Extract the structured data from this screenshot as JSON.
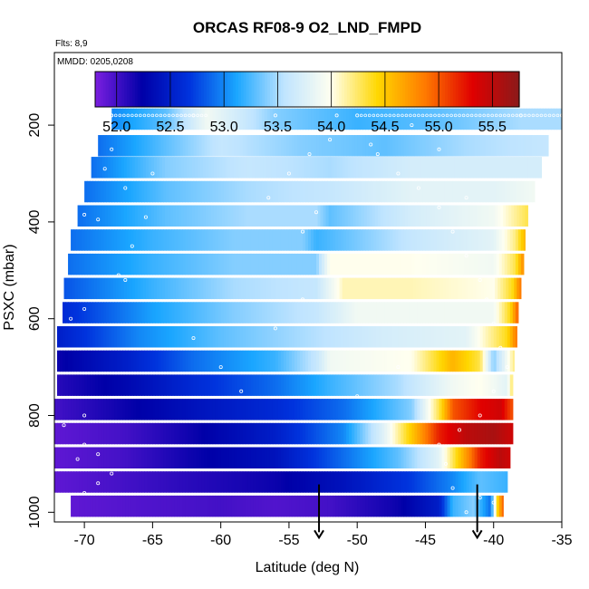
{
  "chart_data": {
    "type": "heatmap",
    "title": "ORCAS RF08-9 O2_LND_FMPD",
    "subtitle": "Flts: 8,9",
    "annotation": "MMDD: 0205,0208",
    "xlabel": "Latitude (deg N)",
    "ylabel": "PSXC (mbar)",
    "xlim": [
      -72.2,
      -35
    ],
    "ylim": [
      1020,
      50
    ],
    "y_reversed": true,
    "x_ticks": [
      -70,
      -65,
      -60,
      -55,
      -50,
      -45,
      -40,
      -35
    ],
    "x_tick_labels": [
      "-70",
      "-65",
      "-60",
      "-55",
      "-50",
      "-45",
      "-40",
      "-35"
    ],
    "y_ticks": [
      200,
      400,
      600,
      800,
      1000
    ],
    "y_tick_labels": [
      "200",
      "400",
      "600",
      "800",
      "1000"
    ],
    "colorbar": {
      "min": 51.8,
      "max": 55.75,
      "ticks": [
        52.0,
        52.5,
        53.0,
        53.5,
        54.0,
        54.5,
        55.0,
        55.5
      ],
      "tick_labels": [
        "52.0",
        "52.5",
        "53.0",
        "53.5",
        "54.0",
        "54.5",
        "55.0",
        "55.5"
      ],
      "colors": [
        "#7b1fe0",
        "#0000a8",
        "#0033dd",
        "#1aa6ff",
        "#bfe4ff",
        "#fffff0",
        "#ffd700",
        "#ff7a00",
        "#e00000",
        "#8b1a1a"
      ]
    },
    "layers": [
      {
        "p_center": 187.5,
        "lat_start": -68.0,
        "lat_end": -35.0,
        "profile": [
          [
            -68.0,
            53.0
          ],
          [
            -64.0,
            53.3
          ],
          [
            -61.0,
            53.9
          ],
          [
            -56.0,
            53.4
          ],
          [
            -50.0,
            53.2
          ],
          [
            -44.0,
            53.3
          ],
          [
            -38.0,
            53.5
          ],
          [
            -35.0,
            53.5
          ]
        ]
      },
      {
        "p_center": 242.5,
        "lat_start": -69.0,
        "lat_end": -36.0,
        "profile": [
          [
            -69.0,
            52.9
          ],
          [
            -64.0,
            53.3
          ],
          [
            -60.0,
            53.6
          ],
          [
            -54.0,
            53.4
          ],
          [
            -48.0,
            53.3
          ],
          [
            -42.0,
            53.5
          ],
          [
            -36.0,
            53.6
          ]
        ]
      },
      {
        "p_center": 287.5,
        "lat_start": -69.5,
        "lat_end": -36.5,
        "profile": [
          [
            -69.5,
            52.9
          ],
          [
            -64.0,
            53.4
          ],
          [
            -58.0,
            53.6
          ],
          [
            -52.0,
            53.5
          ],
          [
            -46.0,
            53.7
          ],
          [
            -40.0,
            53.7
          ],
          [
            -36.5,
            53.7
          ]
        ]
      },
      {
        "p_center": 337.5,
        "lat_start": -70.0,
        "lat_end": -37.0,
        "profile": [
          [
            -70.0,
            52.9
          ],
          [
            -64.0,
            53.3
          ],
          [
            -58.0,
            53.5
          ],
          [
            -52.0,
            53.6
          ],
          [
            -46.0,
            53.8
          ],
          [
            -40.0,
            53.8
          ],
          [
            -37.0,
            53.9
          ]
        ]
      },
      {
        "p_center": 387.5,
        "lat_start": -70.5,
        "lat_end": -37.5,
        "profile": [
          [
            -70.5,
            52.9
          ],
          [
            -64.0,
            53.3
          ],
          [
            -58.0,
            53.5
          ],
          [
            -53.0,
            53.5
          ],
          [
            -52.0,
            53.3
          ],
          [
            -46.0,
            53.7
          ],
          [
            -40.0,
            53.9
          ],
          [
            -37.5,
            54.3
          ]
        ]
      },
      {
        "p_center": 437.5,
        "lat_start": -71.0,
        "lat_end": -37.7,
        "profile": [
          [
            -71.0,
            52.9
          ],
          [
            -65.0,
            53.2
          ],
          [
            -59.0,
            53.4
          ],
          [
            -54.0,
            53.4
          ],
          [
            -53.0,
            53.2
          ],
          [
            -46.0,
            53.6
          ],
          [
            -40.0,
            53.8
          ],
          [
            -38.4,
            54.2
          ],
          [
            -37.7,
            54.6
          ]
        ]
      },
      {
        "p_center": 487.5,
        "lat_start": -71.2,
        "lat_end": -37.8,
        "profile": [
          [
            -71.2,
            52.9
          ],
          [
            -65.0,
            53.2
          ],
          [
            -59.0,
            53.4
          ],
          [
            -53.0,
            53.4
          ],
          [
            -52.0,
            54.0
          ],
          [
            -46.0,
            54.0
          ],
          [
            -40.0,
            53.9
          ],
          [
            -38.4,
            54.3
          ],
          [
            -37.8,
            54.8
          ]
        ]
      },
      {
        "p_center": 537.5,
        "lat_start": -71.5,
        "lat_end": -38.0,
        "profile": [
          [
            -71.5,
            52.8
          ],
          [
            -65.0,
            53.2
          ],
          [
            -59.0,
            53.5
          ],
          [
            -53.0,
            53.6
          ],
          [
            -51.0,
            54.1
          ],
          [
            -46.0,
            54.1
          ],
          [
            -40.0,
            54.0
          ],
          [
            -38.6,
            54.4
          ],
          [
            -38.0,
            54.9
          ]
        ]
      },
      {
        "p_center": 587.5,
        "lat_start": -71.6,
        "lat_end": -38.2,
        "profile": [
          [
            -71.6,
            52.6
          ],
          [
            -65.0,
            53.1
          ],
          [
            -59.0,
            53.4
          ],
          [
            -53.0,
            53.6
          ],
          [
            -50.0,
            53.9
          ],
          [
            -45.0,
            53.9
          ],
          [
            -40.0,
            53.9
          ],
          [
            -38.8,
            54.4
          ],
          [
            -38.2,
            55.0
          ]
        ]
      },
      {
        "p_center": 637.5,
        "lat_start": -72.0,
        "lat_end": -38.3,
        "profile": [
          [
            -72.0,
            52.5
          ],
          [
            -66.0,
            53.0
          ],
          [
            -60.0,
            53.3
          ],
          [
            -54.0,
            53.5
          ],
          [
            -48.0,
            53.7
          ],
          [
            -42.0,
            53.8
          ],
          [
            -39.0,
            54.4
          ],
          [
            -38.3,
            54.9
          ]
        ]
      },
      {
        "p_center": 687.5,
        "lat_start": -72.0,
        "lat_end": -38.5,
        "profile": [
          [
            -72.0,
            52.2
          ],
          [
            -67.0,
            52.5
          ],
          [
            -62.0,
            52.9
          ],
          [
            -56.0,
            53.2
          ],
          [
            -53.0,
            53.6
          ],
          [
            -52.0,
            53.9
          ],
          [
            -46.0,
            54.0
          ],
          [
            -43.0,
            54.6
          ],
          [
            -41.0,
            54.3
          ],
          [
            -40.0,
            53.4
          ],
          [
            -38.5,
            54.2
          ]
        ]
      },
      {
        "p_center": 737.5,
        "lat_start": -72.0,
        "lat_end": -38.6,
        "profile": [
          [
            -72.0,
            52.1
          ],
          [
            -67.0,
            52.3
          ],
          [
            -62.0,
            52.6
          ],
          [
            -56.0,
            52.9
          ],
          [
            -52.0,
            53.2
          ],
          [
            -47.0,
            53.5
          ],
          [
            -43.0,
            53.9
          ],
          [
            -41.0,
            54.0
          ],
          [
            -39.0,
            53.8
          ],
          [
            -38.6,
            54.3
          ]
        ]
      },
      {
        "p_center": 787.5,
        "lat_start": -72.2,
        "lat_end": -38.6,
        "profile": [
          [
            -72.2,
            52.0
          ],
          [
            -67.0,
            52.2
          ],
          [
            -62.0,
            52.4
          ],
          [
            -56.0,
            52.6
          ],
          [
            -51.0,
            52.9
          ],
          [
            -46.0,
            53.4
          ],
          [
            -44.0,
            54.3
          ],
          [
            -43.0,
            55.0
          ],
          [
            -41.0,
            55.3
          ],
          [
            -39.5,
            55.4
          ],
          [
            -38.6,
            55.0
          ]
        ]
      },
      {
        "p_center": 837.5,
        "lat_start": -72.2,
        "lat_end": -38.6,
        "profile": [
          [
            -72.2,
            51.9
          ],
          [
            -67.0,
            52.0
          ],
          [
            -62.0,
            52.2
          ],
          [
            -56.0,
            52.5
          ],
          [
            -51.0,
            53.0
          ],
          [
            -48.0,
            53.8
          ],
          [
            -46.0,
            54.5
          ],
          [
            -44.0,
            55.2
          ],
          [
            -42.0,
            55.5
          ],
          [
            -40.0,
            55.6
          ],
          [
            -38.6,
            55.4
          ]
        ]
      },
      {
        "p_center": 887.5,
        "lat_start": -72.2,
        "lat_end": -38.8,
        "profile": [
          [
            -72.2,
            51.9
          ],
          [
            -67.0,
            52.0
          ],
          [
            -62.0,
            52.2
          ],
          [
            -56.0,
            52.4
          ],
          [
            -51.0,
            52.9
          ],
          [
            -47.0,
            53.3
          ],
          [
            -44.0,
            53.8
          ],
          [
            -42.5,
            54.5
          ],
          [
            -41.0,
            55.2
          ],
          [
            -39.5,
            55.5
          ],
          [
            -38.8,
            55.4
          ]
        ]
      },
      {
        "p_center": 937.5,
        "lat_start": -72.2,
        "lat_end": -39.0,
        "profile": [
          [
            -72.2,
            51.9
          ],
          [
            -67.0,
            52.0
          ],
          [
            -62.0,
            52.1
          ],
          [
            -56.0,
            52.2
          ],
          [
            -51.0,
            52.4
          ],
          [
            -46.0,
            52.7
          ],
          [
            -43.0,
            53.0
          ],
          [
            -41.0,
            53.3
          ],
          [
            -39.0,
            53.2
          ]
        ]
      },
      {
        "p_center": 987.5,
        "lat_start": -71.0,
        "lat_end": -39.3,
        "profile": [
          [
            -71.0,
            51.9
          ],
          [
            -66.0,
            51.95
          ],
          [
            -60.0,
            52.0
          ],
          [
            -56.0,
            51.95
          ],
          [
            -52.0,
            52.0
          ],
          [
            -47.0,
            52.2
          ],
          [
            -44.0,
            52.5
          ],
          [
            -43.0,
            53.2
          ],
          [
            -41.5,
            53.4
          ],
          [
            -40.2,
            52.9
          ],
          [
            -39.8,
            54.3
          ],
          [
            -39.3,
            55.0
          ]
        ]
      }
    ],
    "flight_track": [
      [
        -68.0,
        180
      ],
      [
        -62.0,
        180
      ],
      [
        -56.0,
        180
      ],
      [
        -50.0,
        180
      ],
      [
        -38.0,
        180
      ],
      [
        -35.0,
        180
      ],
      [
        -70.0,
        800
      ],
      [
        -71.5,
        820
      ],
      [
        -70.0,
        860
      ],
      [
        -69.0,
        880
      ],
      [
        -70.5,
        890
      ],
      [
        -68.0,
        920
      ],
      [
        -69.0,
        940
      ],
      [
        -70.0,
        960
      ],
      [
        -71.0,
        600
      ],
      [
        -70.0,
        580
      ],
      [
        -67.0,
        520
      ],
      [
        -67.5,
        510
      ],
      [
        -66.5,
        450
      ],
      [
        -65.5,
        390
      ],
      [
        -67.0,
        330
      ],
      [
        -69.0,
        395
      ],
      [
        -70.0,
        385
      ],
      [
        -68.5,
        290
      ],
      [
        -68.0,
        250
      ],
      [
        -65.0,
        300
      ],
      [
        -62.0,
        640
      ],
      [
        -60.0,
        700
      ],
      [
        -58.5,
        750
      ],
      [
        -56.0,
        620
      ],
      [
        -54.0,
        560
      ],
      [
        -56.5,
        350
      ],
      [
        -55.0,
        300
      ],
      [
        -53.5,
        260
      ],
      [
        -52.0,
        230
      ],
      [
        -51.5,
        180
      ],
      [
        -48.5,
        260
      ],
      [
        -47.0,
        300
      ],
      [
        -45.5,
        330
      ],
      [
        -44.0,
        370
      ],
      [
        -43.0,
        420
      ],
      [
        -42.0,
        470
      ],
      [
        -41.0,
        520
      ],
      [
        -40.5,
        560
      ],
      [
        -40.0,
        610
      ],
      [
        -39.5,
        660
      ],
      [
        -39.0,
        700
      ],
      [
        -40.0,
        750
      ],
      [
        -41.0,
        800
      ],
      [
        -42.5,
        830
      ],
      [
        -44.0,
        860
      ],
      [
        -43.5,
        900
      ],
      [
        -43.0,
        950
      ],
      [
        -41.0,
        970
      ],
      [
        -40.0,
        980
      ],
      [
        -39.0,
        990
      ],
      [
        -42.0,
        1000
      ],
      [
        -50.0,
        760
      ],
      [
        -47.0,
        700
      ],
      [
        -54.0,
        420
      ],
      [
        -53.0,
        380
      ],
      [
        -49.0,
        240
      ],
      [
        -46.0,
        200
      ],
      [
        -44.0,
        250
      ],
      [
        -42.0,
        350
      ]
    ],
    "arrows": [
      {
        "lat": -52.8,
        "p": 1000
      },
      {
        "lat": -41.2,
        "p": 1000
      }
    ]
  }
}
